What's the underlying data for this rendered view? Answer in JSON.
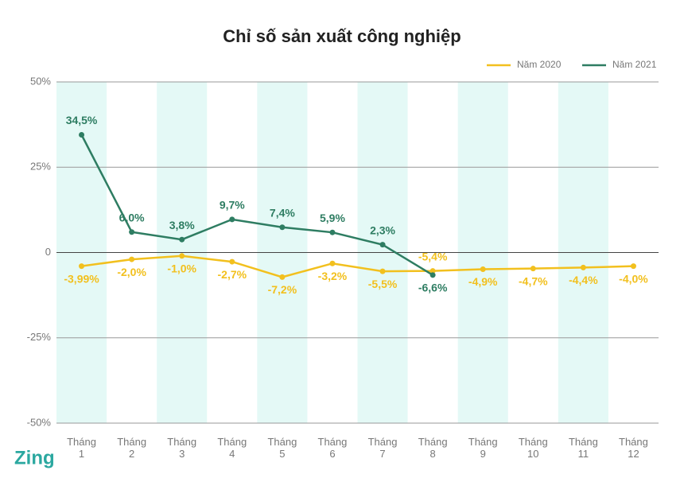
{
  "chart_data": {
    "type": "line",
    "title": "Chỉ số sản xuất công nghiệp",
    "categories": [
      "Tháng 1",
      "Tháng 2",
      "Tháng 3",
      "Tháng 4",
      "Tháng 5",
      "Tháng 6",
      "Tháng 7",
      "Tháng 8",
      "Tháng 9",
      "Tháng 10",
      "Tháng 11",
      "Tháng 12"
    ],
    "series": [
      {
        "name": "Năm 2020",
        "color": "#f2c01e",
        "values": [
          -3.99,
          -2.0,
          -1.0,
          -2.7,
          -7.2,
          -3.2,
          -5.5,
          -5.4,
          -4.9,
          -4.7,
          -4.4,
          -4.0
        ],
        "value_labels": [
          "-3,99%",
          "-2,0%",
          "-1,0%",
          "-2,7%",
          "-7,2%",
          "-3,2%",
          "-5,5%",
          "-5,4%",
          "-4,9%",
          "-4,7%",
          "-4,4%",
          "-4,0%"
        ]
      },
      {
        "name": "Năm 2021",
        "color": "#2e7d62",
        "values": [
          34.5,
          6.0,
          3.8,
          9.7,
          7.4,
          5.9,
          2.3,
          -6.6,
          null,
          null,
          null,
          null
        ],
        "value_labels": [
          "34,5%",
          "6,0%",
          "3,8%",
          "9,7%",
          "7,4%",
          "5,9%",
          "2,3%",
          "-6,6%",
          null,
          null,
          null,
          null
        ]
      }
    ],
    "ylim": [
      -50,
      50
    ],
    "yticks": [
      {
        "value": 50,
        "label": "50%"
      },
      {
        "value": 25,
        "label": "25%"
      },
      0,
      {
        "value": -25,
        "label": "-25%"
      },
      {
        "value": -50,
        "label": "-50%"
      }
    ],
    "grid": true,
    "legend": "top-right",
    "band_color": "#e4f9f6",
    "logo": "Zing"
  }
}
